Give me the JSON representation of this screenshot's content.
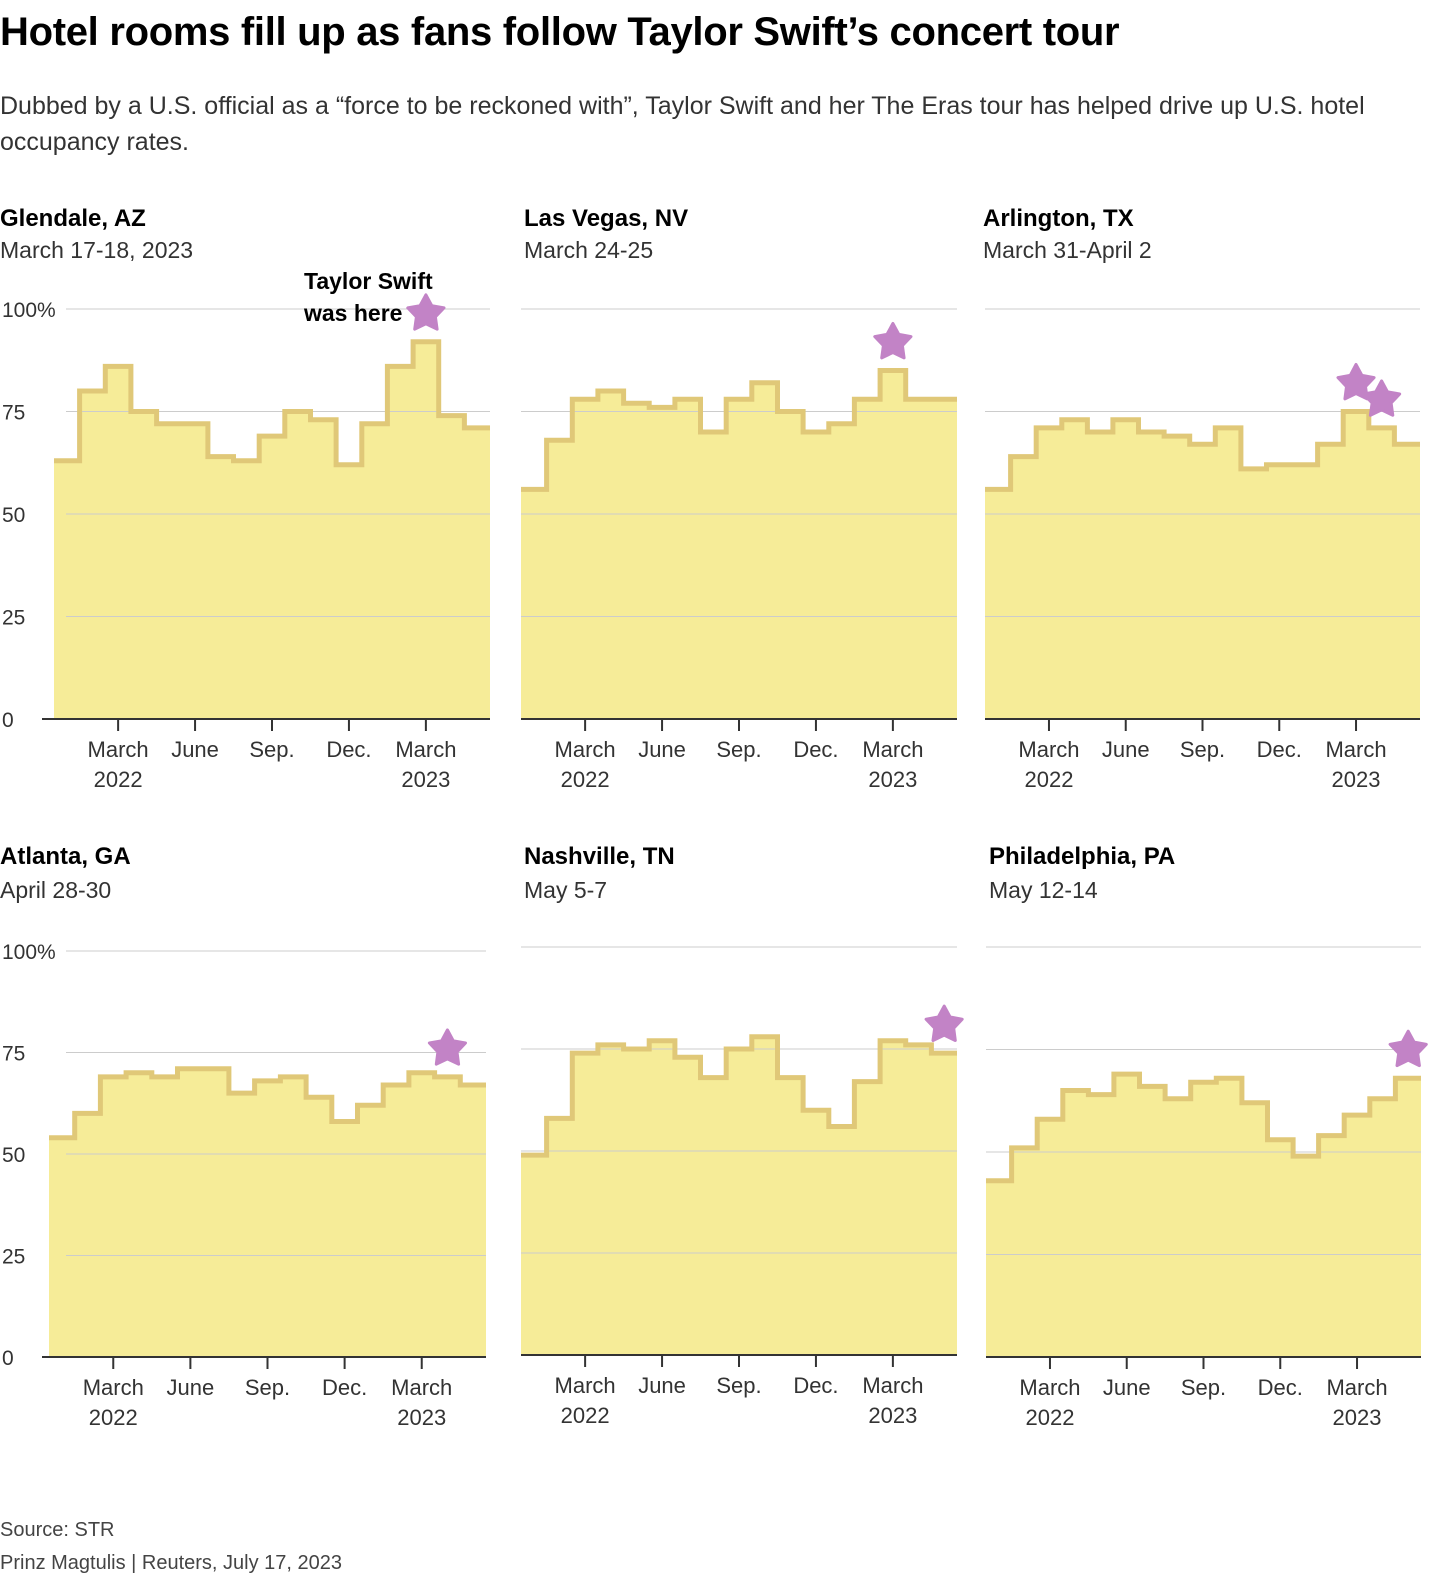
{
  "header": {
    "title": "Hotel rooms fill up as fans follow Taylor Swift’s concert tour",
    "subtitle": "Dubbed by a U.S. official as a “force to be reckoned with”, Taylor Swift and her The Eras tour has helped drive up U.S. hotel occupancy rates."
  },
  "footer": {
    "source": "Source: STR",
    "credit": "Prinz Magtulis  |  Reuters, July 17, 2023"
  },
  "colors": {
    "fill": "#f6ec98",
    "line": "#e0c878",
    "star": "#c283c6",
    "grid": "#cccccc",
    "axis": "#333333"
  },
  "star_icon": "star-icon",
  "chart_data": [
    {
      "type": "area",
      "title": "Glendale, AZ",
      "subtitle": "March 17-18, 2023",
      "annotation": [
        "Taylor Swift",
        "was here"
      ],
      "ylim": [
        0,
        100
      ],
      "yticks": [
        "100%",
        "75",
        "50",
        "25",
        "0"
      ],
      "xlabels": [
        [
          "March",
          "2022"
        ],
        [
          "June",
          ""
        ],
        [
          "Sep.",
          ""
        ],
        [
          "Dec.",
          ""
        ],
        [
          "March",
          "2023"
        ]
      ],
      "x": [
        "2022-01",
        "2022-02",
        "2022-03",
        "2022-04",
        "2022-05",
        "2022-06",
        "2022-07",
        "2022-08",
        "2022-09",
        "2022-10",
        "2022-11",
        "2022-12",
        "2023-01",
        "2023-02",
        "2023-03",
        "2023-04",
        "2023-05"
      ],
      "values": [
        63,
        80,
        86,
        75,
        72,
        72,
        64,
        63,
        69,
        75,
        73,
        62,
        72,
        86,
        92,
        74,
        71
      ],
      "star_months": [
        "2023-03"
      ]
    },
    {
      "type": "area",
      "title": "Las Vegas, NV",
      "subtitle": "March 24-25",
      "ylim": [
        0,
        100
      ],
      "xlabels": [
        [
          "March",
          "2022"
        ],
        [
          "June",
          ""
        ],
        [
          "Sep.",
          ""
        ],
        [
          "Dec.",
          ""
        ],
        [
          "March",
          "2023"
        ]
      ],
      "x": [
        "2022-01",
        "2022-02",
        "2022-03",
        "2022-04",
        "2022-05",
        "2022-06",
        "2022-07",
        "2022-08",
        "2022-09",
        "2022-10",
        "2022-11",
        "2022-12",
        "2023-01",
        "2023-02",
        "2023-03",
        "2023-04",
        "2023-05"
      ],
      "values": [
        56,
        68,
        78,
        80,
        77,
        76,
        78,
        70,
        78,
        82,
        75,
        70,
        72,
        78,
        85,
        78,
        78
      ],
      "star_months": [
        "2023-03"
      ]
    },
    {
      "type": "area",
      "title": "Arlington, TX",
      "subtitle": "March 31-April 2",
      "ylim": [
        0,
        100
      ],
      "xlabels": [
        [
          "March",
          "2022"
        ],
        [
          "June",
          ""
        ],
        [
          "Sep.",
          ""
        ],
        [
          "Dec.",
          ""
        ],
        [
          "March",
          "2023"
        ]
      ],
      "x": [
        "2022-01",
        "2022-02",
        "2022-03",
        "2022-04",
        "2022-05",
        "2022-06",
        "2022-07",
        "2022-08",
        "2022-09",
        "2022-10",
        "2022-11",
        "2022-12",
        "2023-01",
        "2023-02",
        "2023-03",
        "2023-04",
        "2023-05"
      ],
      "values": [
        56,
        64,
        71,
        73,
        70,
        73,
        70,
        69,
        67,
        71,
        61,
        62,
        62,
        67,
        75,
        71,
        67
      ],
      "star_months": [
        "2023-03",
        "2023-04"
      ]
    },
    {
      "type": "area",
      "title": "Atlanta, GA",
      "subtitle": "April 28-30",
      "ylim": [
        0,
        100
      ],
      "yticks": [
        "100%",
        "75",
        "50",
        "25",
        "0"
      ],
      "xlabels": [
        [
          "March",
          "2022"
        ],
        [
          "June",
          ""
        ],
        [
          "Sep.",
          ""
        ],
        [
          "Dec.",
          ""
        ],
        [
          "March",
          "2023"
        ]
      ],
      "x": [
        "2022-01",
        "2022-02",
        "2022-03",
        "2022-04",
        "2022-05",
        "2022-06",
        "2022-07",
        "2022-08",
        "2022-09",
        "2022-10",
        "2022-11",
        "2022-12",
        "2023-01",
        "2023-02",
        "2023-03",
        "2023-04",
        "2023-05"
      ],
      "values": [
        54,
        60,
        69,
        70,
        69,
        71,
        71,
        65,
        68,
        69,
        64,
        58,
        62,
        67,
        70,
        69,
        67
      ],
      "star_months": [
        "2023-04"
      ]
    },
    {
      "type": "area",
      "title": "Nashville, TN",
      "subtitle": "May 5-7",
      "ylim": [
        0,
        100
      ],
      "xlabels": [
        [
          "March",
          "2022"
        ],
        [
          "June",
          ""
        ],
        [
          "Sep.",
          ""
        ],
        [
          "Dec.",
          ""
        ],
        [
          "March",
          "2023"
        ]
      ],
      "x": [
        "2022-01",
        "2022-02",
        "2022-03",
        "2022-04",
        "2022-05",
        "2022-06",
        "2022-07",
        "2022-08",
        "2022-09",
        "2022-10",
        "2022-11",
        "2022-12",
        "2023-01",
        "2023-02",
        "2023-03",
        "2023-04",
        "2023-05"
      ],
      "values": [
        49,
        58,
        74,
        76,
        75,
        77,
        73,
        68,
        75,
        78,
        68,
        60,
        56,
        67,
        77,
        76,
        74
      ],
      "star_months": [
        "2023-05"
      ]
    },
    {
      "type": "area",
      "title": "Philadelphia, PA",
      "subtitle": "May 12-14",
      "ylim": [
        0,
        100
      ],
      "xlabels": [
        [
          "March",
          "2022"
        ],
        [
          "June",
          ""
        ],
        [
          "Sep.",
          ""
        ],
        [
          "Dec.",
          ""
        ],
        [
          "March",
          "2023"
        ]
      ],
      "x": [
        "2022-01",
        "2022-02",
        "2022-03",
        "2022-04",
        "2022-05",
        "2022-06",
        "2022-07",
        "2022-08",
        "2022-09",
        "2022-10",
        "2022-11",
        "2022-12",
        "2023-01",
        "2023-02",
        "2023-03",
        "2023-04",
        "2023-05"
      ],
      "values": [
        43,
        51,
        58,
        65,
        64,
        69,
        66,
        63,
        67,
        68,
        62,
        53,
        49,
        54,
        59,
        63,
        68
      ],
      "star_months": [
        "2023-05"
      ]
    }
  ]
}
